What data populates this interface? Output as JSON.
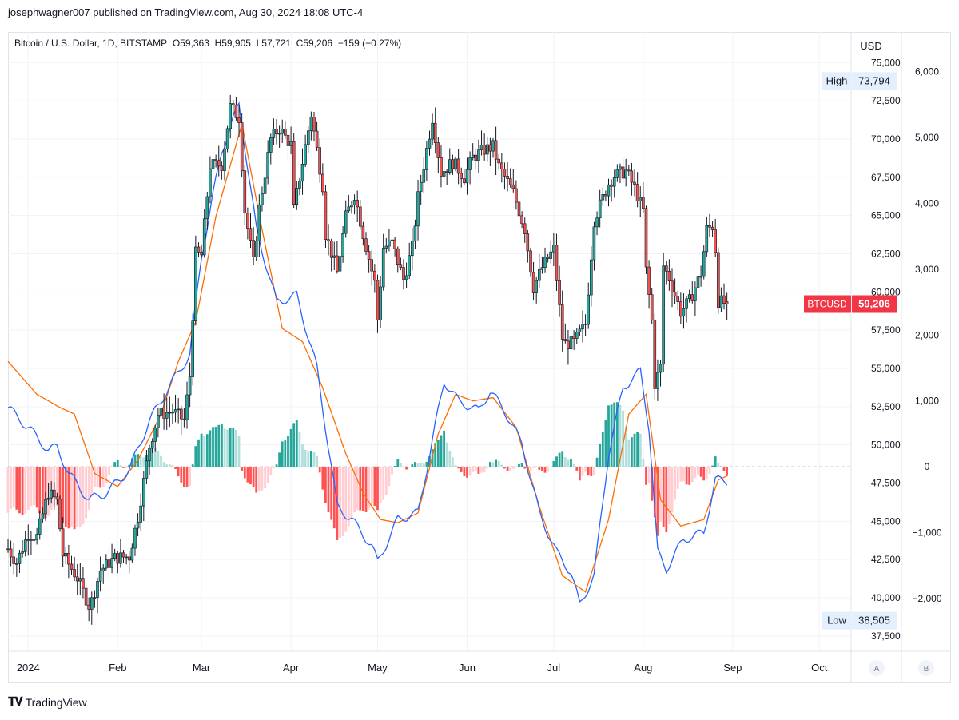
{
  "header": {
    "publisher_text": "josephwagner007 published on TradingView.com, Aug 30, 2024 18:08 UTC-4"
  },
  "legend": {
    "symbol": "Bitcoin / U.S. Dollar, 1D, BITSTAMP",
    "open": "O59,363",
    "high": "H59,905",
    "low": "L57,721",
    "close": "C59,206",
    "change": "−159 (−0.27%)"
  },
  "footer": {
    "brand": "TradingView"
  },
  "chart_data": {
    "type": "candlestick",
    "currency_label": "USD",
    "price_axis": {
      "ticks": [
        "37,500",
        "40,000",
        "42,500",
        "45,000",
        "47,500",
        "50,000",
        "52,500",
        "55,000",
        "57,500",
        "60,000",
        "62,500",
        "65,000",
        "67,500",
        "70,000",
        "72,500",
        "75,000"
      ],
      "range": [
        36500,
        77000
      ]
    },
    "oscillator_axis": {
      "ticks": [
        "−2,000",
        "−1,000",
        "0",
        "1,000",
        "2,000",
        "3,000",
        "4,000",
        "5,000",
        "6,000"
      ],
      "range": [
        -2800,
        6600
      ]
    },
    "time_axis": {
      "labels": [
        "2024",
        "Feb",
        "Mar",
        "Apr",
        "May",
        "Jun",
        "Jul",
        "Aug",
        "Sep",
        "Oct"
      ],
      "range": [
        "2023-12-25",
        "2024-10-12"
      ]
    },
    "markers": {
      "high": {
        "label": "High",
        "value": "73,794",
        "price": 73794
      },
      "low": {
        "label": "Low",
        "value": "38,505",
        "price": 38505
      },
      "last": {
        "label": "BTCUSD",
        "value": "59,206",
        "price": 59206
      }
    },
    "scale_buttons": [
      "A",
      "B"
    ],
    "colors": {
      "up_candle": "#26a69a",
      "down_candle": "#ef5350",
      "macd_line": "#2962ff",
      "signal_line": "#ff6d00",
      "hist_up_strong": "#26a69a",
      "hist_up_weak": "#b2dfdb",
      "hist_down_strong": "#ff5252",
      "hist_down_weak": "#ffcdd2",
      "last_price": "#f23645"
    },
    "close_anchors": [
      [
        "2023-12-25",
        43200
      ],
      [
        "2023-12-28",
        42300
      ],
      [
        "2024-01-01",
        44200
      ],
      [
        "2024-01-04",
        44000
      ],
      [
        "2024-01-08",
        46900
      ],
      [
        "2024-01-11",
        46300
      ],
      [
        "2024-01-13",
        42800
      ],
      [
        "2024-01-18",
        41300
      ],
      [
        "2024-01-22",
        39500
      ],
      [
        "2024-01-23",
        39800
      ],
      [
        "2024-01-26",
        41800
      ],
      [
        "2024-01-31",
        42600
      ],
      [
        "2024-02-05",
        42700
      ],
      [
        "2024-02-08",
        45300
      ],
      [
        "2024-02-12",
        49900
      ],
      [
        "2024-02-15",
        52000
      ],
      [
        "2024-02-20",
        52200
      ],
      [
        "2024-02-24",
        51600
      ],
      [
        "2024-02-26",
        54500
      ],
      [
        "2024-02-28",
        62500
      ],
      [
        "2024-03-01",
        62400
      ],
      [
        "2024-03-04",
        68300
      ],
      [
        "2024-03-08",
        68300
      ],
      [
        "2024-03-11",
        72100
      ],
      [
        "2024-03-14",
        71400
      ],
      [
        "2024-03-16",
        65300
      ],
      [
        "2024-03-19",
        61900
      ],
      [
        "2024-03-21",
        65500
      ],
      [
        "2024-03-25",
        70000
      ],
      [
        "2024-03-28",
        70700
      ],
      [
        "2024-04-01",
        69600
      ],
      [
        "2024-04-02",
        65400
      ],
      [
        "2024-04-08",
        71600
      ],
      [
        "2024-04-12",
        67000
      ],
      [
        "2024-04-13",
        63800
      ],
      [
        "2024-04-17",
        61300
      ],
      [
        "2024-04-20",
        64900
      ],
      [
        "2024-04-23",
        66400
      ],
      [
        "2024-04-26",
        63800
      ],
      [
        "2024-04-30",
        60600
      ],
      [
        "2024-05-01",
        58200
      ],
      [
        "2024-05-03",
        62900
      ],
      [
        "2024-05-06",
        63200
      ],
      [
        "2024-05-10",
        60800
      ],
      [
        "2024-05-13",
        62900
      ],
      [
        "2024-05-15",
        66200
      ],
      [
        "2024-05-20",
        71400
      ],
      [
        "2024-05-23",
        67800
      ],
      [
        "2024-05-27",
        68500
      ],
      [
        "2024-05-31",
        67500
      ],
      [
        "2024-06-03",
        68800
      ],
      [
        "2024-06-07",
        69300
      ],
      [
        "2024-06-10",
        69500
      ],
      [
        "2024-06-12",
        68200
      ],
      [
        "2024-06-17",
        66500
      ],
      [
        "2024-06-21",
        64100
      ],
      [
        "2024-06-24",
        60300
      ],
      [
        "2024-06-27",
        61600
      ],
      [
        "2024-07-01",
        62800
      ],
      [
        "2024-07-04",
        57000
      ],
      [
        "2024-07-05",
        56600
      ],
      [
        "2024-07-08",
        56700
      ],
      [
        "2024-07-12",
        57900
      ],
      [
        "2024-07-15",
        64700
      ],
      [
        "2024-07-20",
        67100
      ],
      [
        "2024-07-22",
        67600
      ],
      [
        "2024-07-26",
        67900
      ],
      [
        "2024-07-29",
        66800
      ],
      [
        "2024-08-01",
        65300
      ],
      [
        "2024-08-02",
        61400
      ],
      [
        "2024-08-04",
        58100
      ],
      [
        "2024-08-05",
        54000
      ],
      [
        "2024-08-07",
        55100
      ],
      [
        "2024-08-08",
        61700
      ],
      [
        "2024-08-10",
        60900
      ],
      [
        "2024-08-14",
        58700
      ],
      [
        "2024-08-17",
        59400
      ],
      [
        "2024-08-21",
        61200
      ],
      [
        "2024-08-23",
        64100
      ],
      [
        "2024-08-25",
        64300
      ],
      [
        "2024-08-26",
        62800
      ],
      [
        "2024-08-27",
        59400
      ],
      [
        "2024-08-30",
        59206
      ]
    ],
    "macd_anchors": [
      [
        "2023-12-25",
        900
      ],
      [
        "2024-01-02",
        550
      ],
      [
        "2024-01-08",
        250
      ],
      [
        "2024-01-11",
        300
      ],
      [
        "2024-01-15",
        -100
      ],
      [
        "2024-01-22",
        -500
      ],
      [
        "2024-01-28",
        -400
      ],
      [
        "2024-02-05",
        -50
      ],
      [
        "2024-02-12",
        700
      ],
      [
        "2024-02-20",
        1300
      ],
      [
        "2024-02-26",
        1700
      ],
      [
        "2024-03-01",
        3200
      ],
      [
        "2024-03-08",
        4800
      ],
      [
        "2024-03-14",
        5500
      ],
      [
        "2024-03-20",
        3600
      ],
      [
        "2024-03-27",
        2500
      ],
      [
        "2024-04-03",
        2600
      ],
      [
        "2024-04-10",
        1500
      ],
      [
        "2024-04-17",
        -600
      ],
      [
        "2024-04-22",
        -800
      ],
      [
        "2024-04-29",
        -1200
      ],
      [
        "2024-05-01",
        -1450
      ],
      [
        "2024-05-08",
        -800
      ],
      [
        "2024-05-15",
        -700
      ],
      [
        "2024-05-20",
        400
      ],
      [
        "2024-05-24",
        1300
      ],
      [
        "2024-05-29",
        1000
      ],
      [
        "2024-06-05",
        850
      ],
      [
        "2024-06-09",
        1150
      ],
      [
        "2024-06-14",
        850
      ],
      [
        "2024-06-20",
        350
      ],
      [
        "2024-06-26",
        -700
      ],
      [
        "2024-07-02",
        -1300
      ],
      [
        "2024-07-07",
        -1600
      ],
      [
        "2024-07-10",
        -2100
      ],
      [
        "2024-07-15",
        -1650
      ],
      [
        "2024-07-20",
        200
      ],
      [
        "2024-07-25",
        1200
      ],
      [
        "2024-07-31",
        1450
      ],
      [
        "2024-08-03",
        600
      ],
      [
        "2024-08-06",
        -1300
      ],
      [
        "2024-08-09",
        -1550
      ],
      [
        "2024-08-15",
        -1100
      ],
      [
        "2024-08-22",
        -1000
      ],
      [
        "2024-08-26",
        -200
      ],
      [
        "2024-08-30",
        -220
      ]
    ],
    "signal_anchors": [
      [
        "2023-12-25",
        1600
      ],
      [
        "2024-01-04",
        1100
      ],
      [
        "2024-01-12",
        900
      ],
      [
        "2024-01-17",
        800
      ],
      [
        "2024-01-24",
        -100
      ],
      [
        "2024-02-01",
        -300
      ],
      [
        "2024-02-08",
        100
      ],
      [
        "2024-02-16",
        800
      ],
      [
        "2024-02-22",
        1600
      ],
      [
        "2024-02-28",
        2200
      ],
      [
        "2024-03-06",
        3800
      ],
      [
        "2024-03-15",
        5200
      ],
      [
        "2024-03-22",
        3600
      ],
      [
        "2024-03-29",
        2100
      ],
      [
        "2024-04-05",
        1900
      ],
      [
        "2024-04-12",
        1200
      ],
      [
        "2024-04-20",
        200
      ],
      [
        "2024-04-26",
        -400
      ],
      [
        "2024-05-02",
        -800
      ],
      [
        "2024-05-08",
        -850
      ],
      [
        "2024-05-15",
        -700
      ],
      [
        "2024-05-22",
        500
      ],
      [
        "2024-05-28",
        1100
      ],
      [
        "2024-06-03",
        1000
      ],
      [
        "2024-06-10",
        1050
      ],
      [
        "2024-06-18",
        600
      ],
      [
        "2024-06-26",
        -600
      ],
      [
        "2024-07-04",
        -1650
      ],
      [
        "2024-07-12",
        -1900
      ],
      [
        "2024-07-20",
        -800
      ],
      [
        "2024-07-27",
        800
      ],
      [
        "2024-08-02",
        1100
      ],
      [
        "2024-08-07",
        -500
      ],
      [
        "2024-08-14",
        -900
      ],
      [
        "2024-08-22",
        -800
      ],
      [
        "2024-08-27",
        -200
      ],
      [
        "2024-08-30",
        -140
      ]
    ]
  }
}
